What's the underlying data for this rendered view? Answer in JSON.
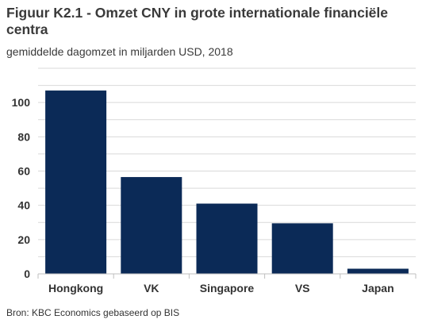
{
  "chart_data": {
    "type": "bar",
    "title": "Figuur K2.1 - Omzet CNY in grote internationale financiële centra",
    "subtitle": "gemiddelde dagomzet in miljarden USD, 2018",
    "categories": [
      "Hongkong",
      "VK",
      "Singapore",
      "VS",
      "Japan"
    ],
    "values": [
      107,
      56.5,
      41,
      29.5,
      3
    ],
    "ylim": [
      0,
      120
    ],
    "yticks": [
      0,
      20,
      40,
      60,
      80,
      100
    ],
    "grid": true,
    "bar_color": "#0b2a57",
    "source": "Bron: KBC Economics gebaseerd op BIS"
  }
}
